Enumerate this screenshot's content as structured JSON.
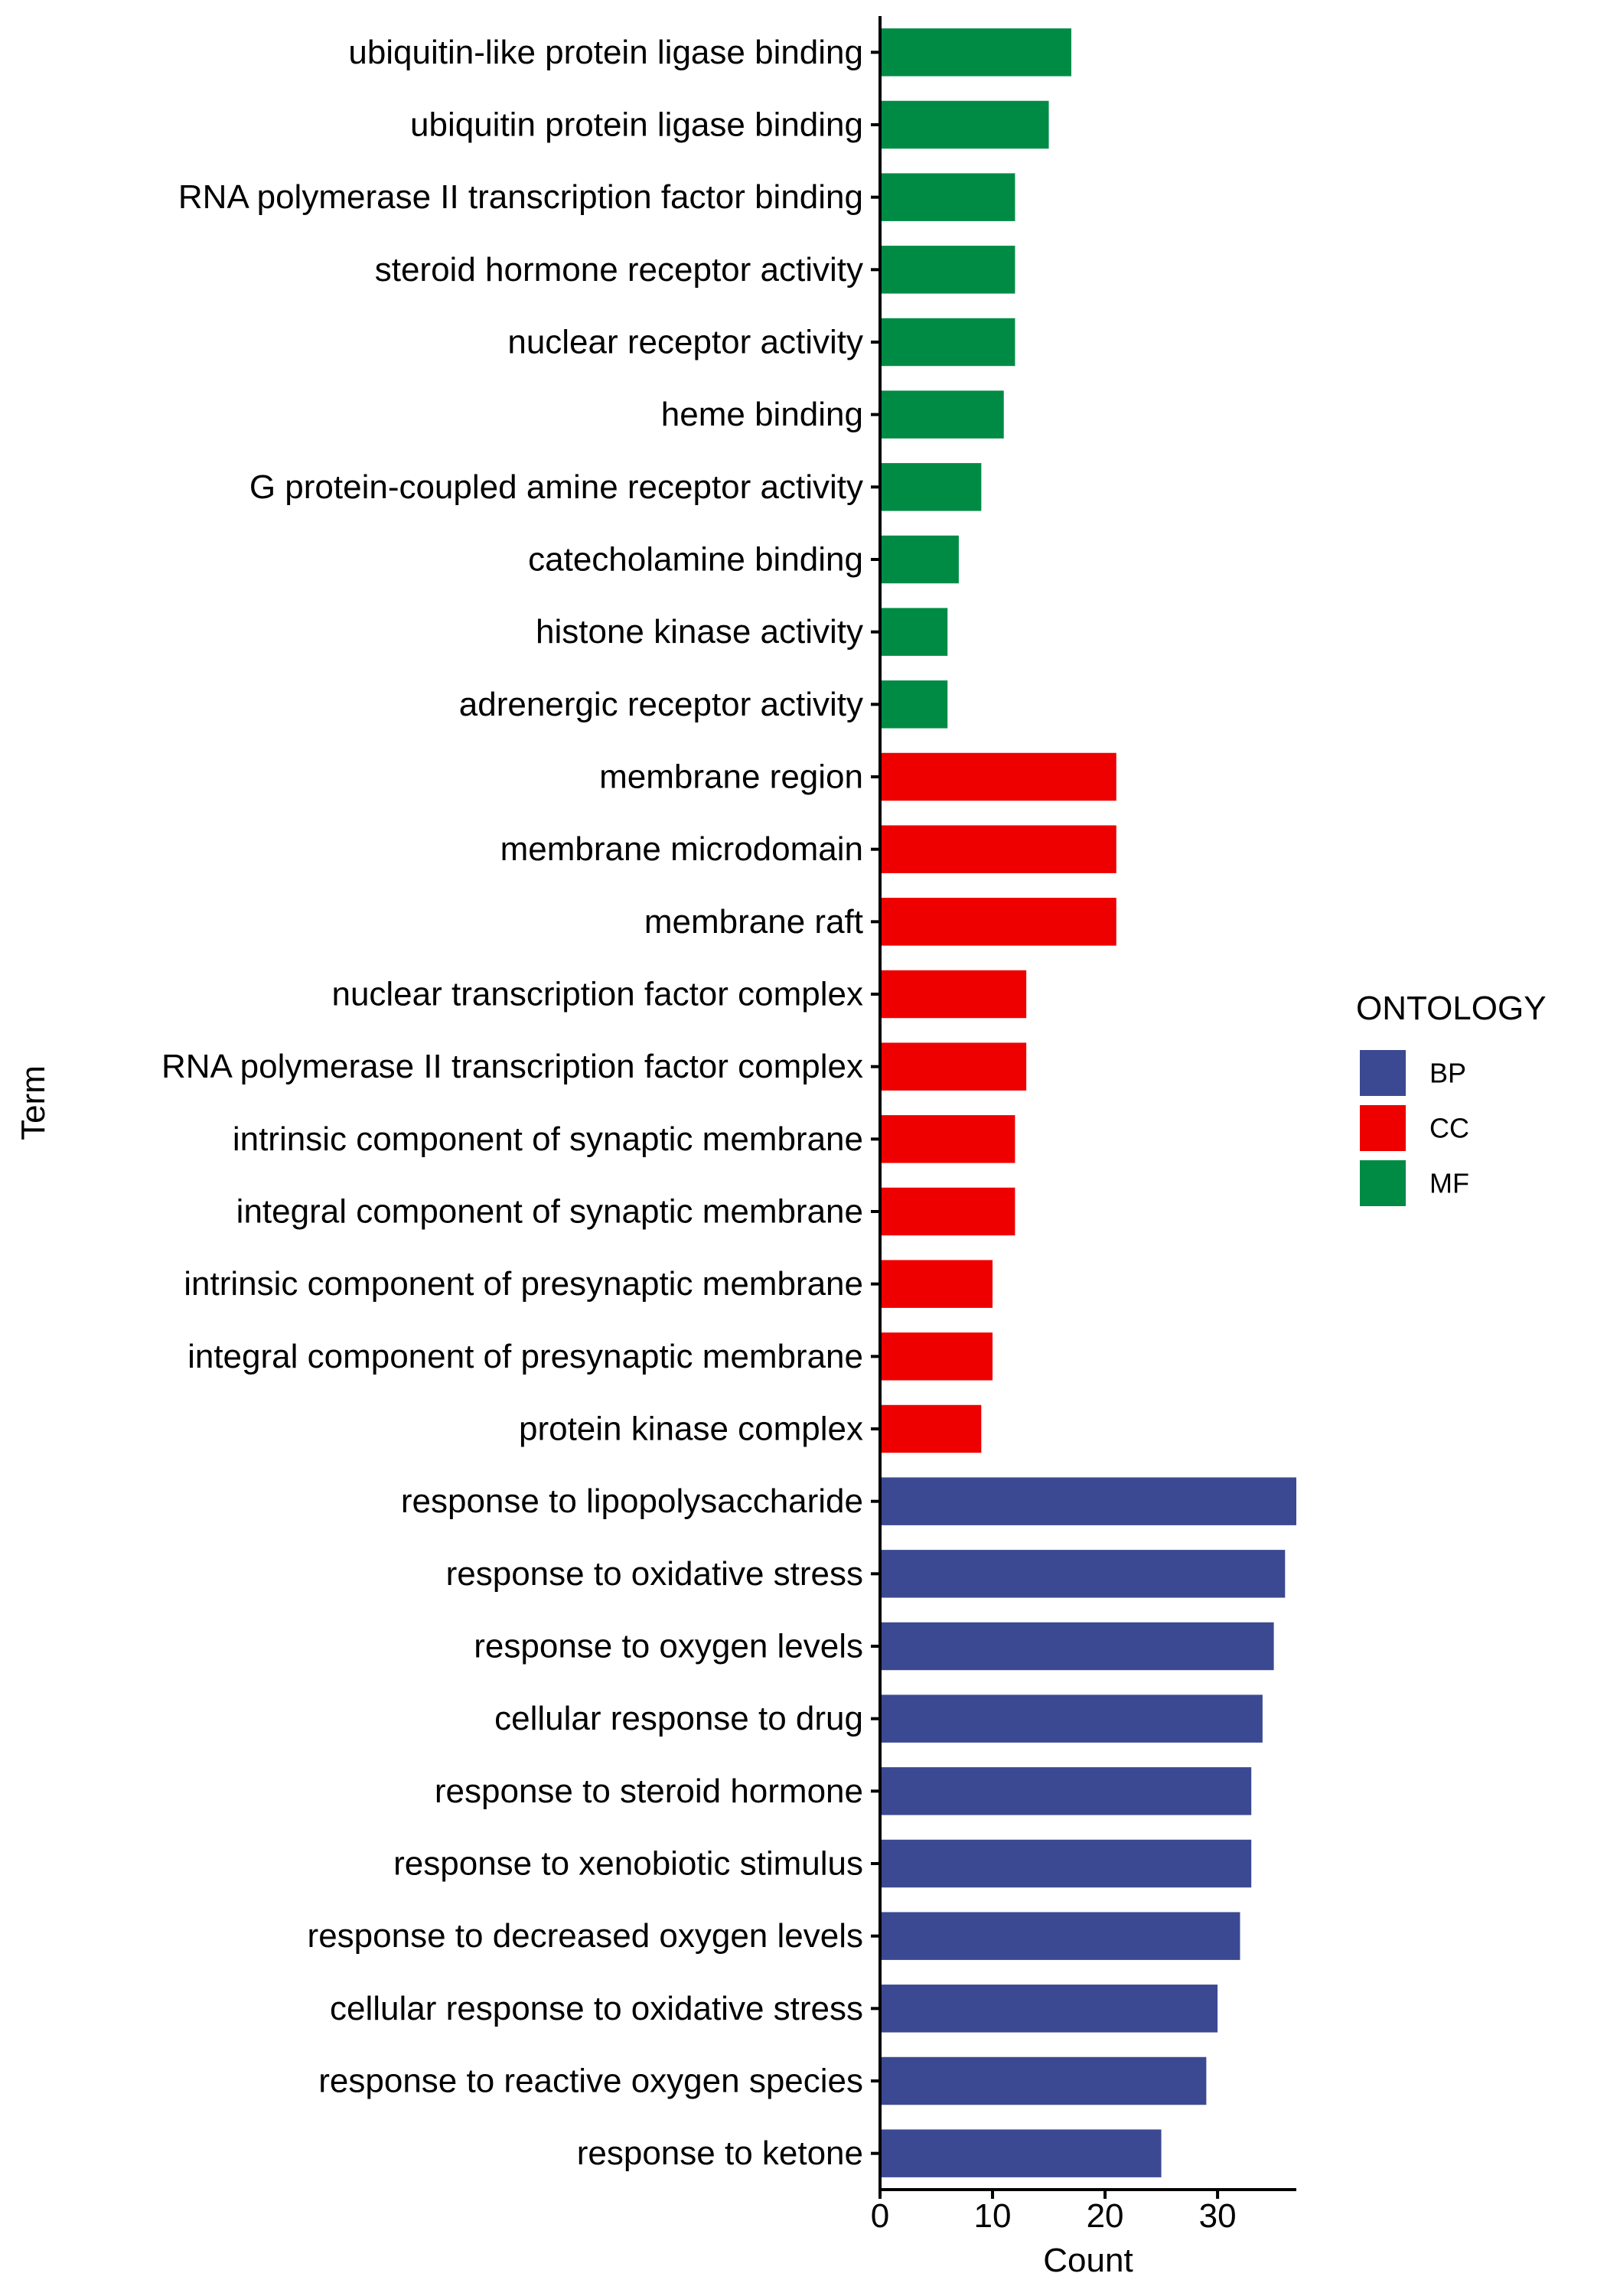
{
  "chart_data": {
    "type": "bar",
    "orientation": "horizontal",
    "xlabel": "Count",
    "ylabel": "Term",
    "xlim": [
      0,
      37
    ],
    "x_ticks": [
      0,
      10,
      20,
      30
    ],
    "grid": false,
    "legend": {
      "title": "ONTOLOGY",
      "position": "right",
      "entries": [
        {
          "label": "BP",
          "color": "#3B4992"
        },
        {
          "label": "CC",
          "color": "#EE0000"
        },
        {
          "label": "MF",
          "color": "#008B45"
        }
      ]
    },
    "bars": [
      {
        "term": "ubiquitin-like protein ligase binding",
        "value": 17,
        "ontology": "MF"
      },
      {
        "term": "ubiquitin protein ligase binding",
        "value": 15,
        "ontology": "MF"
      },
      {
        "term": "RNA polymerase II transcription factor binding",
        "value": 12,
        "ontology": "MF"
      },
      {
        "term": "steroid hormone receptor activity",
        "value": 12,
        "ontology": "MF"
      },
      {
        "term": "nuclear receptor activity",
        "value": 12,
        "ontology": "MF"
      },
      {
        "term": "heme binding",
        "value": 11,
        "ontology": "MF"
      },
      {
        "term": "G protein-coupled amine receptor activity",
        "value": 9,
        "ontology": "MF"
      },
      {
        "term": "catecholamine binding",
        "value": 7,
        "ontology": "MF"
      },
      {
        "term": "histone kinase activity",
        "value": 6,
        "ontology": "MF"
      },
      {
        "term": "adrenergic receptor activity",
        "value": 6,
        "ontology": "MF"
      },
      {
        "term": "membrane region",
        "value": 21,
        "ontology": "CC"
      },
      {
        "term": "membrane microdomain",
        "value": 21,
        "ontology": "CC"
      },
      {
        "term": "membrane raft",
        "value": 21,
        "ontology": "CC"
      },
      {
        "term": "nuclear transcription factor complex",
        "value": 13,
        "ontology": "CC"
      },
      {
        "term": "RNA polymerase II transcription factor complex",
        "value": 13,
        "ontology": "CC"
      },
      {
        "term": "intrinsic component of synaptic membrane",
        "value": 12,
        "ontology": "CC"
      },
      {
        "term": "integral component of synaptic membrane",
        "value": 12,
        "ontology": "CC"
      },
      {
        "term": "intrinsic component of presynaptic membrane",
        "value": 10,
        "ontology": "CC"
      },
      {
        "term": "integral component of presynaptic membrane",
        "value": 10,
        "ontology": "CC"
      },
      {
        "term": "protein kinase complex",
        "value": 9,
        "ontology": "CC"
      },
      {
        "term": "response to lipopolysaccharide",
        "value": 37,
        "ontology": "BP"
      },
      {
        "term": "response to oxidative stress",
        "value": 36,
        "ontology": "BP"
      },
      {
        "term": "response to oxygen levels",
        "value": 35,
        "ontology": "BP"
      },
      {
        "term": "cellular response to drug",
        "value": 34,
        "ontology": "BP"
      },
      {
        "term": "response to steroid hormone",
        "value": 33,
        "ontology": "BP"
      },
      {
        "term": "response to xenobiotic stimulus",
        "value": 33,
        "ontology": "BP"
      },
      {
        "term": "response to decreased oxygen levels",
        "value": 32,
        "ontology": "BP"
      },
      {
        "term": "cellular response to oxidative stress",
        "value": 30,
        "ontology": "BP"
      },
      {
        "term": "response to reactive oxygen species",
        "value": 29,
        "ontology": "BP"
      },
      {
        "term": "response to ketone",
        "value": 25,
        "ontology": "BP"
      }
    ]
  }
}
